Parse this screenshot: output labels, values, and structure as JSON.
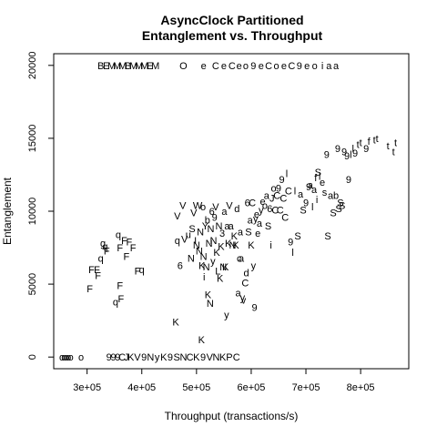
{
  "chart_data": {
    "type": "scatter",
    "title": "AsyncClock Partitioned",
    "subtitle": "Entanglement vs. Throughput",
    "xlabel": "Throughput (transactions/s)",
    "ylabel": "Entanglement",
    "xlim": [
      239000,
      888000
    ],
    "ylim": [
      -800,
      20800
    ],
    "xticks": [
      {
        "value": 300000,
        "label": "3e+05"
      },
      {
        "value": 400000,
        "label": "4e+05"
      },
      {
        "value": 500000,
        "label": "5e+05"
      },
      {
        "value": 600000,
        "label": "6e+05"
      },
      {
        "value": 700000,
        "label": "7e+05"
      },
      {
        "value": 800000,
        "label": "8e+05"
      }
    ],
    "yticks": [
      {
        "value": 0,
        "label": "0"
      },
      {
        "value": 5000,
        "label": "5000"
      },
      {
        "value": 10000,
        "label": "10000"
      },
      {
        "value": 15000,
        "label": "15000"
      },
      {
        "value": 20000,
        "label": "20000"
      }
    ],
    "grid": false,
    "marker": "letter glyphs",
    "points": [
      {
        "x": 254000,
        "y": 0,
        "label": "o"
      },
      {
        "x": 258000,
        "y": 0,
        "label": "o"
      },
      {
        "x": 262000,
        "y": 0,
        "label": "o"
      },
      {
        "x": 266000,
        "y": 0,
        "label": "o"
      },
      {
        "x": 270000,
        "y": 0,
        "label": "o"
      },
      {
        "x": 289000,
        "y": 0,
        "label": "o"
      },
      {
        "x": 340000,
        "y": 0,
        "label": "9"
      },
      {
        "x": 348000,
        "y": 0,
        "label": "9"
      },
      {
        "x": 356000,
        "y": 0,
        "label": "9"
      },
      {
        "x": 364000,
        "y": 0,
        "label": "C"
      },
      {
        "x": 372000,
        "y": 0,
        "label": "J"
      },
      {
        "x": 380000,
        "y": 0,
        "label": "K"
      },
      {
        "x": 392000,
        "y": 0,
        "label": "V"
      },
      {
        "x": 404000,
        "y": 0,
        "label": "9"
      },
      {
        "x": 416000,
        "y": 0,
        "label": "N"
      },
      {
        "x": 428000,
        "y": 0,
        "label": "y"
      },
      {
        "x": 440000,
        "y": 0,
        "label": "K"
      },
      {
        "x": 452000,
        "y": 0,
        "label": "9"
      },
      {
        "x": 464000,
        "y": 0,
        "label": "S"
      },
      {
        "x": 476000,
        "y": 0,
        "label": "N"
      },
      {
        "x": 488000,
        "y": 0,
        "label": "C"
      },
      {
        "x": 500000,
        "y": 0,
        "label": "K"
      },
      {
        "x": 512000,
        "y": 0,
        "label": "9"
      },
      {
        "x": 524000,
        "y": 0,
        "label": "V"
      },
      {
        "x": 536000,
        "y": 0,
        "label": "N"
      },
      {
        "x": 548000,
        "y": 0,
        "label": "K"
      },
      {
        "x": 560000,
        "y": 0,
        "label": "P"
      },
      {
        "x": 573000,
        "y": 0,
        "label": "C"
      },
      {
        "x": 325000,
        "y": 20000,
        "label": "B"
      },
      {
        "x": 335000,
        "y": 20000,
        "label": "E"
      },
      {
        "x": 345000,
        "y": 20000,
        "label": "M"
      },
      {
        "x": 355000,
        "y": 20000,
        "label": "M"
      },
      {
        "x": 365000,
        "y": 20000,
        "label": "M"
      },
      {
        "x": 375000,
        "y": 20000,
        "label": "B"
      },
      {
        "x": 385000,
        "y": 20000,
        "label": "M"
      },
      {
        "x": 395000,
        "y": 20000,
        "label": "M"
      },
      {
        "x": 405000,
        "y": 20000,
        "label": "M"
      },
      {
        "x": 415000,
        "y": 20000,
        "label": "E"
      },
      {
        "x": 425000,
        "y": 20000,
        "label": "M"
      },
      {
        "x": 476000,
        "y": 20000,
        "label": "O"
      },
      {
        "x": 513000,
        "y": 20000,
        "label": "e"
      },
      {
        "x": 535000,
        "y": 20000,
        "label": "C"
      },
      {
        "x": 550000,
        "y": 20000,
        "label": "e"
      },
      {
        "x": 565000,
        "y": 20000,
        "label": "C"
      },
      {
        "x": 578000,
        "y": 20000,
        "label": "e"
      },
      {
        "x": 590000,
        "y": 20000,
        "label": "o"
      },
      {
        "x": 604000,
        "y": 20000,
        "label": "9"
      },
      {
        "x": 618000,
        "y": 20000,
        "label": "e"
      },
      {
        "x": 632000,
        "y": 20000,
        "label": "C"
      },
      {
        "x": 646000,
        "y": 20000,
        "label": "o"
      },
      {
        "x": 660000,
        "y": 20000,
        "label": "e"
      },
      {
        "x": 674000,
        "y": 20000,
        "label": "C"
      },
      {
        "x": 688000,
        "y": 20000,
        "label": "9"
      },
      {
        "x": 702000,
        "y": 20000,
        "label": "e"
      },
      {
        "x": 716000,
        "y": 20000,
        "label": "o"
      },
      {
        "x": 730000,
        "y": 20000,
        "label": "i"
      },
      {
        "x": 742000,
        "y": 20000,
        "label": "a"
      },
      {
        "x": 755000,
        "y": 20000,
        "label": "a"
      },
      {
        "x": 305000,
        "y": 4700,
        "label": "F"
      },
      {
        "x": 308000,
        "y": 6000,
        "label": "F"
      },
      {
        "x": 318000,
        "y": 6000,
        "label": "F"
      },
      {
        "x": 320000,
        "y": 5600,
        "label": "F"
      },
      {
        "x": 325000,
        "y": 6800,
        "label": "q"
      },
      {
        "x": 329000,
        "y": 7800,
        "label": "g"
      },
      {
        "x": 333000,
        "y": 7600,
        "label": "q"
      },
      {
        "x": 336000,
        "y": 7300,
        "label": "F"
      },
      {
        "x": 352000,
        "y": 3800,
        "label": "q"
      },
      {
        "x": 360000,
        "y": 4900,
        "label": "F"
      },
      {
        "x": 362000,
        "y": 4000,
        "label": "F"
      },
      {
        "x": 357000,
        "y": 8400,
        "label": "q"
      },
      {
        "x": 360000,
        "y": 7500,
        "label": "F"
      },
      {
        "x": 368000,
        "y": 8000,
        "label": "F"
      },
      {
        "x": 372000,
        "y": 6900,
        "label": "F"
      },
      {
        "x": 377000,
        "y": 7900,
        "label": "F"
      },
      {
        "x": 384000,
        "y": 7500,
        "label": "F"
      },
      {
        "x": 392000,
        "y": 5900,
        "label": "F"
      },
      {
        "x": 400000,
        "y": 6000,
        "label": "q"
      },
      {
        "x": 462000,
        "y": 2400,
        "label": "K"
      },
      {
        "x": 470000,
        "y": 6300,
        "label": "6"
      },
      {
        "x": 465000,
        "y": 9700,
        "label": "V"
      },
      {
        "x": 465000,
        "y": 8000,
        "label": "q"
      },
      {
        "x": 475000,
        "y": 10400,
        "label": "V"
      },
      {
        "x": 478000,
        "y": 8100,
        "label": "V"
      },
      {
        "x": 485000,
        "y": 8400,
        "label": "u"
      },
      {
        "x": 490000,
        "y": 6800,
        "label": "N"
      },
      {
        "x": 492000,
        "y": 8800,
        "label": "S"
      },
      {
        "x": 495000,
        "y": 9900,
        "label": "V"
      },
      {
        "x": 498000,
        "y": 8000,
        "label": "I"
      },
      {
        "x": 500000,
        "y": 7700,
        "label": "N"
      },
      {
        "x": 502000,
        "y": 10400,
        "label": "W"
      },
      {
        "x": 505000,
        "y": 7300,
        "label": "N"
      },
      {
        "x": 507000,
        "y": 8600,
        "label": "N"
      },
      {
        "x": 509000,
        "y": 1200,
        "label": "K"
      },
      {
        "x": 510000,
        "y": 6300,
        "label": "K"
      },
      {
        "x": 512000,
        "y": 10300,
        "label": "o"
      },
      {
        "x": 513000,
        "y": 6900,
        "label": "N"
      },
      {
        "x": 514000,
        "y": 5500,
        "label": "i"
      },
      {
        "x": 516000,
        "y": 9000,
        "label": "Y"
      },
      {
        "x": 518000,
        "y": 6200,
        "label": "N"
      },
      {
        "x": 520000,
        "y": 9400,
        "label": "b"
      },
      {
        "x": 521000,
        "y": 4300,
        "label": "K"
      },
      {
        "x": 523000,
        "y": 7800,
        "label": "N"
      },
      {
        "x": 525000,
        "y": 3700,
        "label": "N"
      },
      {
        "x": 526000,
        "y": 8800,
        "label": "N"
      },
      {
        "x": 528000,
        "y": 10000,
        "label": "6"
      },
      {
        "x": 530000,
        "y": 6600,
        "label": "y"
      },
      {
        "x": 531000,
        "y": 8000,
        "label": "N"
      },
      {
        "x": 533000,
        "y": 9600,
        "label": "9"
      },
      {
        "x": 535000,
        "y": 10300,
        "label": "V"
      },
      {
        "x": 537000,
        "y": 7200,
        "label": "K"
      },
      {
        "x": 539000,
        "y": 5900,
        "label": "L"
      },
      {
        "x": 541000,
        "y": 9000,
        "label": "N"
      },
      {
        "x": 543000,
        "y": 5400,
        "label": "K"
      },
      {
        "x": 545000,
        "y": 7600,
        "label": "K"
      },
      {
        "x": 547000,
        "y": 8500,
        "label": "3"
      },
      {
        "x": 549000,
        "y": 6200,
        "label": "N"
      },
      {
        "x": 551000,
        "y": 10000,
        "label": "a"
      },
      {
        "x": 553000,
        "y": 6200,
        "label": "K"
      },
      {
        "x": 555000,
        "y": 2900,
        "label": "y"
      },
      {
        "x": 556000,
        "y": 9000,
        "label": "a"
      },
      {
        "x": 558000,
        "y": 7800,
        "label": "K"
      },
      {
        "x": 560000,
        "y": 10400,
        "label": "V"
      },
      {
        "x": 563000,
        "y": 9000,
        "label": "a"
      },
      {
        "x": 566000,
        "y": 7700,
        "label": "N"
      },
      {
        "x": 569000,
        "y": 8300,
        "label": "K"
      },
      {
        "x": 572000,
        "y": 7700,
        "label": "K"
      },
      {
        "x": 574000,
        "y": 10200,
        "label": "d"
      },
      {
        "x": 576000,
        "y": 4400,
        "label": "a"
      },
      {
        "x": 578000,
        "y": 6800,
        "label": "c"
      },
      {
        "x": 580000,
        "y": 8600,
        "label": "a"
      },
      {
        "x": 582000,
        "y": 6800,
        "label": "a"
      },
      {
        "x": 584000,
        "y": 4100,
        "label": "y"
      },
      {
        "x": 586000,
        "y": 3900,
        "label": "v"
      },
      {
        "x": 589000,
        "y": 5100,
        "label": "C"
      },
      {
        "x": 591000,
        "y": 5800,
        "label": "d"
      },
      {
        "x": 593000,
        "y": 10600,
        "label": "6"
      },
      {
        "x": 595000,
        "y": 8600,
        "label": "S"
      },
      {
        "x": 598000,
        "y": 9400,
        "label": "a"
      },
      {
        "x": 600000,
        "y": 7700,
        "label": "K"
      },
      {
        "x": 602000,
        "y": 10600,
        "label": "C"
      },
      {
        "x": 604000,
        "y": 6300,
        "label": "y"
      },
      {
        "x": 606000,
        "y": 3400,
        "label": "9"
      },
      {
        "x": 608000,
        "y": 9500,
        "label": "y"
      },
      {
        "x": 610000,
        "y": 9800,
        "label": "e"
      },
      {
        "x": 612000,
        "y": 8500,
        "label": "e"
      },
      {
        "x": 615000,
        "y": 9200,
        "label": "a"
      },
      {
        "x": 618000,
        "y": 10100,
        "label": "y"
      },
      {
        "x": 621000,
        "y": 10700,
        "label": "e"
      },
      {
        "x": 625000,
        "y": 10400,
        "label": "o"
      },
      {
        "x": 628000,
        "y": 11100,
        "label": "a"
      },
      {
        "x": 631000,
        "y": 9000,
        "label": "S"
      },
      {
        "x": 634000,
        "y": 10200,
        "label": "6"
      },
      {
        "x": 636000,
        "y": 7700,
        "label": "i"
      },
      {
        "x": 638000,
        "y": 10900,
        "label": "J"
      },
      {
        "x": 641000,
        "y": 11600,
        "label": "o"
      },
      {
        "x": 644000,
        "y": 10100,
        "label": "C"
      },
      {
        "x": 647000,
        "y": 11100,
        "label": "C"
      },
      {
        "x": 650000,
        "y": 11600,
        "label": "9"
      },
      {
        "x": 653000,
        "y": 10100,
        "label": "C"
      },
      {
        "x": 656000,
        "y": 12200,
        "label": "9"
      },
      {
        "x": 659000,
        "y": 10900,
        "label": "C"
      },
      {
        "x": 662000,
        "y": 9600,
        "label": "C"
      },
      {
        "x": 665000,
        "y": 12600,
        "label": "l"
      },
      {
        "x": 668000,
        "y": 11400,
        "label": "C"
      },
      {
        "x": 672000,
        "y": 7900,
        "label": "9"
      },
      {
        "x": 676000,
        "y": 7200,
        "label": "l"
      },
      {
        "x": 680000,
        "y": 11400,
        "label": "l"
      },
      {
        "x": 685000,
        "y": 8300,
        "label": "S"
      },
      {
        "x": 690000,
        "y": 11200,
        "label": "a"
      },
      {
        "x": 695000,
        "y": 10100,
        "label": "S"
      },
      {
        "x": 700000,
        "y": 10600,
        "label": "9"
      },
      {
        "x": 705000,
        "y": 11700,
        "label": "9"
      },
      {
        "x": 708000,
        "y": 11800,
        "label": "a"
      },
      {
        "x": 712000,
        "y": 10300,
        "label": "l"
      },
      {
        "x": 715000,
        "y": 11500,
        "label": "a"
      },
      {
        "x": 718000,
        "y": 12300,
        "label": "f"
      },
      {
        "x": 720000,
        "y": 10800,
        "label": "i"
      },
      {
        "x": 722000,
        "y": 12700,
        "label": "S"
      },
      {
        "x": 725000,
        "y": 12400,
        "label": "l"
      },
      {
        "x": 730000,
        "y": 12000,
        "label": "e"
      },
      {
        "x": 734000,
        "y": 11300,
        "label": "s"
      },
      {
        "x": 738000,
        "y": 13900,
        "label": "9"
      },
      {
        "x": 740000,
        "y": 8300,
        "label": "S"
      },
      {
        "x": 745000,
        "y": 11100,
        "label": "a"
      },
      {
        "x": 750000,
        "y": 9900,
        "label": "S"
      },
      {
        "x": 755000,
        "y": 11100,
        "label": "b"
      },
      {
        "x": 758000,
        "y": 14300,
        "label": "9"
      },
      {
        "x": 760000,
        "y": 10200,
        "label": "S"
      },
      {
        "x": 763000,
        "y": 10600,
        "label": "S"
      },
      {
        "x": 766000,
        "y": 10400,
        "label": "S"
      },
      {
        "x": 770000,
        "y": 14100,
        "label": "9"
      },
      {
        "x": 775000,
        "y": 13800,
        "label": "9"
      },
      {
        "x": 778000,
        "y": 12200,
        "label": "9"
      },
      {
        "x": 782000,
        "y": 13900,
        "label": "l"
      },
      {
        "x": 786000,
        "y": 14300,
        "label": "l"
      },
      {
        "x": 790000,
        "y": 14000,
        "label": "9"
      },
      {
        "x": 795000,
        "y": 14600,
        "label": "t"
      },
      {
        "x": 800000,
        "y": 14700,
        "label": "t"
      },
      {
        "x": 810000,
        "y": 14300,
        "label": "9"
      },
      {
        "x": 815000,
        "y": 14800,
        "label": "f"
      },
      {
        "x": 825000,
        "y": 14900,
        "label": "t"
      },
      {
        "x": 830000,
        "y": 15000,
        "label": "t"
      },
      {
        "x": 850000,
        "y": 14500,
        "label": "t"
      },
      {
        "x": 860000,
        "y": 14100,
        "label": "t"
      },
      {
        "x": 864000,
        "y": 14700,
        "label": "t"
      }
    ]
  }
}
